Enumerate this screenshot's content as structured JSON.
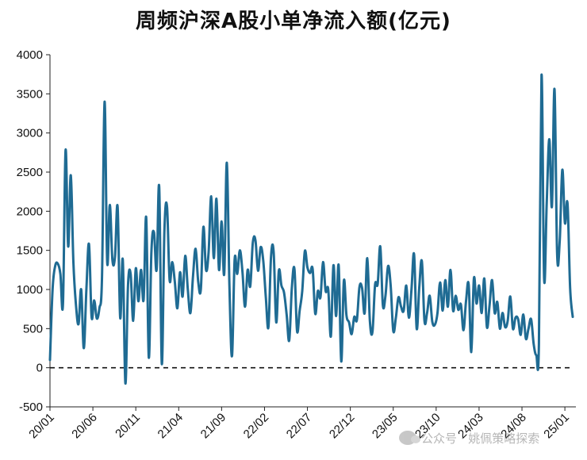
{
  "chart_data": {
    "type": "line",
    "title": "周频沪深A股小单净流入额(亿元)",
    "xlabel": "",
    "ylabel": "",
    "ylim": [
      -500,
      4000
    ],
    "yticks": [
      "4000",
      "3500",
      "3000",
      "2500",
      "2000",
      "1500",
      "1000",
      "500",
      "0",
      "-500"
    ],
    "ytick_values": [
      4000,
      3500,
      3000,
      2500,
      2000,
      1500,
      1000,
      500,
      0,
      -500
    ],
    "xticks": [
      "20/01",
      "20/06",
      "20/11",
      "21/04",
      "21/09",
      "22/02",
      "22/07",
      "22/12",
      "23/05",
      "23/10",
      "24/03",
      "24/08",
      "25/01"
    ],
    "reference_line": {
      "value": 0,
      "style": "dashed"
    },
    "grid": false,
    "line_color": "#1f6b93",
    "series": [
      {
        "values": [
          100,
          1000,
          1300,
          1330,
          1200,
          820,
          2780,
          1550,
          2460,
          1350,
          800,
          560,
          1000,
          250,
          1000,
          1580,
          650,
          860,
          630,
          760,
          1150,
          3400,
          1350,
          2080,
          1380,
          1420,
          2060,
          640,
          1380,
          -200,
          1050,
          1200,
          600,
          1270,
          850,
          1250,
          870,
          1920,
          130,
          1480,
          1730,
          1250,
          2310,
          50,
          1750,
          2060,
          1120,
          1350,
          1100,
          760,
          1220,
          910,
          1430,
          1000,
          700,
          1170,
          1520,
          1100,
          1000,
          1800,
          1250,
          1480,
          2190,
          1400,
          2160,
          1250,
          1870,
          1200,
          2620,
          1050,
          150,
          1380,
          1200,
          1500,
          1230,
          780,
          1250,
          1040,
          1600,
          1630,
          1240,
          1540,
          1370,
          900,
          520,
          1420,
          1480,
          580,
          1240,
          1050,
          960,
          680,
          350,
          1020,
          1260,
          470,
          730,
          980,
          1490,
          1280,
          1210,
          1260,
          690,
          980,
          900,
          1350,
          980,
          1000,
          400,
          1310,
          660,
          1310,
          80,
          1110,
          670,
          580,
          430,
          650,
          610,
          1030,
          1020,
          700,
          1400,
          600,
          460,
          1060,
          1070,
          1550,
          800,
          920,
          1300,
          1050,
          470,
          640,
          900,
          780,
          730,
          1050,
          640,
          1000,
          1450,
          500,
          1030,
          1360,
          600,
          700,
          920,
          590,
          550,
          700,
          1090,
          730,
          1120,
          780,
          1250,
          730,
          920,
          740,
          810,
          480,
          860,
          1060,
          200,
          1140,
          820,
          1050,
          700,
          1140,
          520,
          790,
          1120,
          700,
          840,
          500,
          700,
          520,
          600,
          910,
          500,
          640,
          620,
          420,
          680,
          370,
          500,
          620,
          300,
          160,
          300,
          3740,
          1140,
          2100,
          2920,
          2060,
          3560,
          1460,
          1620,
          2530,
          1850,
          2100,
          1020,
          650
        ]
      }
    ]
  },
  "watermark": {
    "icon": "wechat-icon",
    "text": "公众号 · 姚佩策略探索"
  }
}
